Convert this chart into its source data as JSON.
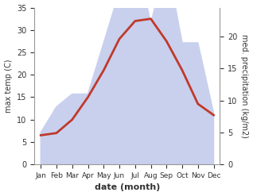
{
  "months": [
    "Jan",
    "Feb",
    "Mar",
    "Apr",
    "May",
    "Jun",
    "Jul",
    "Aug",
    "Sep",
    "Oct",
    "Nov",
    "Dec"
  ],
  "temperature": [
    6.5,
    7.0,
    10.0,
    15.0,
    21.0,
    28.0,
    32.0,
    32.5,
    27.5,
    21.0,
    13.5,
    11.0
  ],
  "precipitation": [
    5.0,
    9.0,
    11.0,
    11.0,
    19.0,
    27.0,
    34.0,
    22.0,
    32.0,
    19.0,
    19.0,
    8.0
  ],
  "temp_color": "#c0392b",
  "precip_fill_color": "#c8d0ee",
  "temp_ylim": [
    0,
    35
  ],
  "precip_ylim": [
    0,
    24.5
  ],
  "temp_yticks": [
    0,
    5,
    10,
    15,
    20,
    25,
    30,
    35
  ],
  "precip_yticks": [
    0,
    5,
    10,
    15,
    20
  ],
  "ylabel_left": "max temp (C)",
  "ylabel_right": "med. precipitation (kg/m2)",
  "xlabel": "date (month)",
  "bg_color": "#ffffff",
  "fig_bg_color": "#ffffff",
  "spine_color": "#999999"
}
